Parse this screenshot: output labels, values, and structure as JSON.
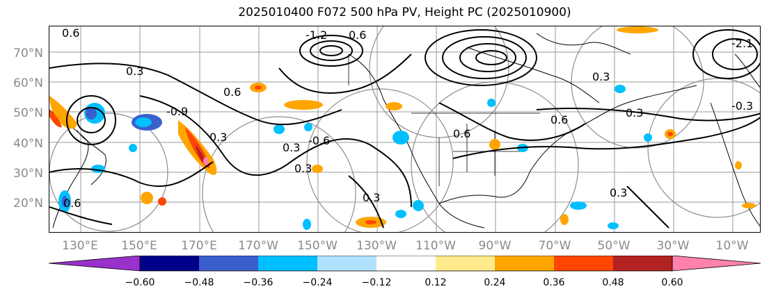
{
  "title": "2025010400 F072 500 hPa PV, Height PC (2025010900)",
  "lat_labels": [
    "70°N",
    "60°N",
    "50°N",
    "40°N",
    "30°N",
    "20°N"
  ],
  "lon_labels": [
    "130°E",
    "150°E",
    "170°E",
    "170°W",
    "150°W",
    "130°W",
    "110°W",
    "90°W",
    "70°W",
    "50°W",
    "30°W",
    "10°W"
  ],
  "contour_labels": [
    "0.6",
    "-1.2",
    "0.6",
    "0.3",
    "0.6",
    "-0.9",
    "0.3",
    "-0.6",
    "0.3",
    "0.3",
    "0.3",
    "0.6",
    "-0.3",
    "-2.1",
    "0.6",
    "0.3",
    "0.3",
    "0.3",
    "0.6"
  ],
  "colorbar": {
    "ticks": [
      "−0.60",
      "−0.48",
      "−0.36",
      "−0.24",
      "−0.12",
      "0.12",
      "0.24",
      "0.36",
      "0.48",
      "0.60"
    ],
    "colors": [
      "#9932cc",
      "#00008b",
      "#3a5fcd",
      "#00bfff",
      "#b0e2ff",
      "#ffffff",
      "#ffeb8c",
      "#ffa500",
      "#ff4500",
      "#b22222",
      "#ff82ab"
    ]
  }
}
